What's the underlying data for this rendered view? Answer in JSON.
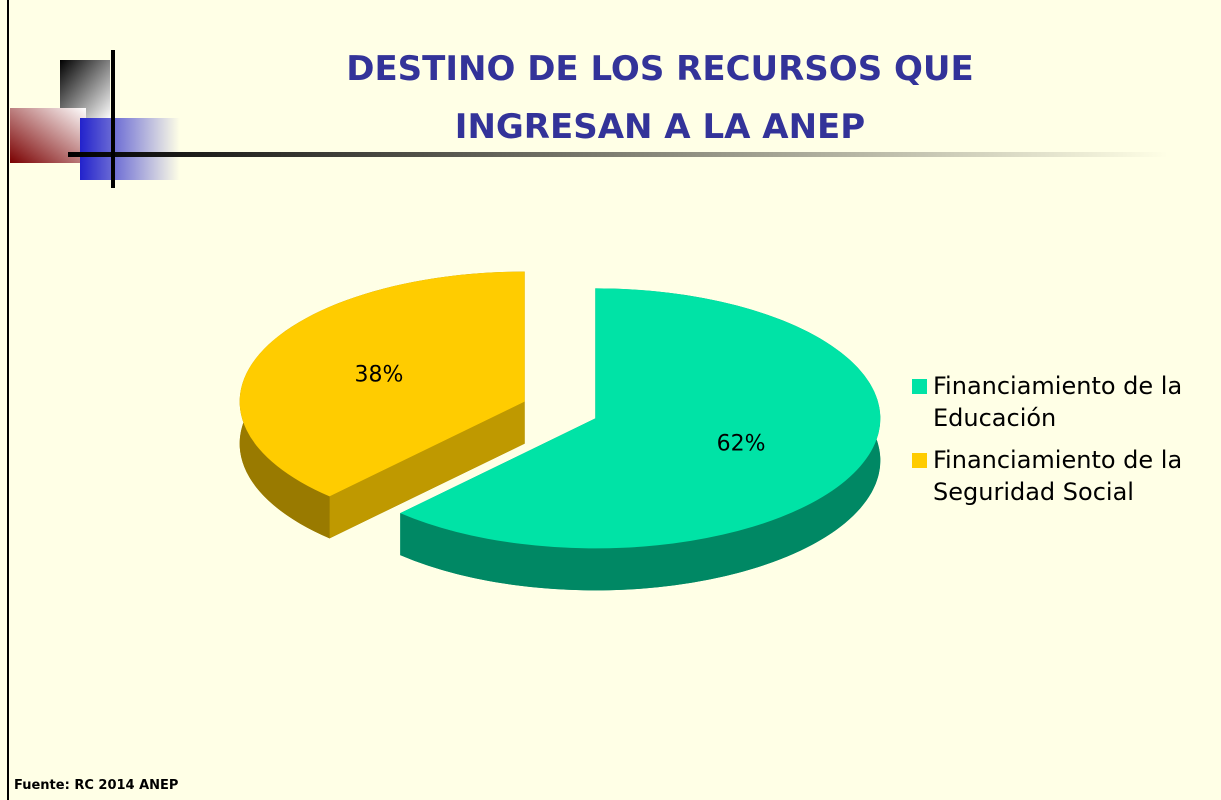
{
  "chart_data": {
    "type": "pie",
    "title": "DESTINO DE LOS RECURSOS QUE INGRESAN A LA ANEP",
    "categories": [
      "Financiamiento de la Educación",
      "Financiamiento de la Seguridad Social"
    ],
    "values": [
      62,
      38
    ],
    "value_labels": [
      "62%",
      "38%"
    ],
    "colors": [
      "#00e3a6",
      "#ffcc00"
    ],
    "legend": "right",
    "source": "Fuente:  RC 2014  ANEP"
  }
}
